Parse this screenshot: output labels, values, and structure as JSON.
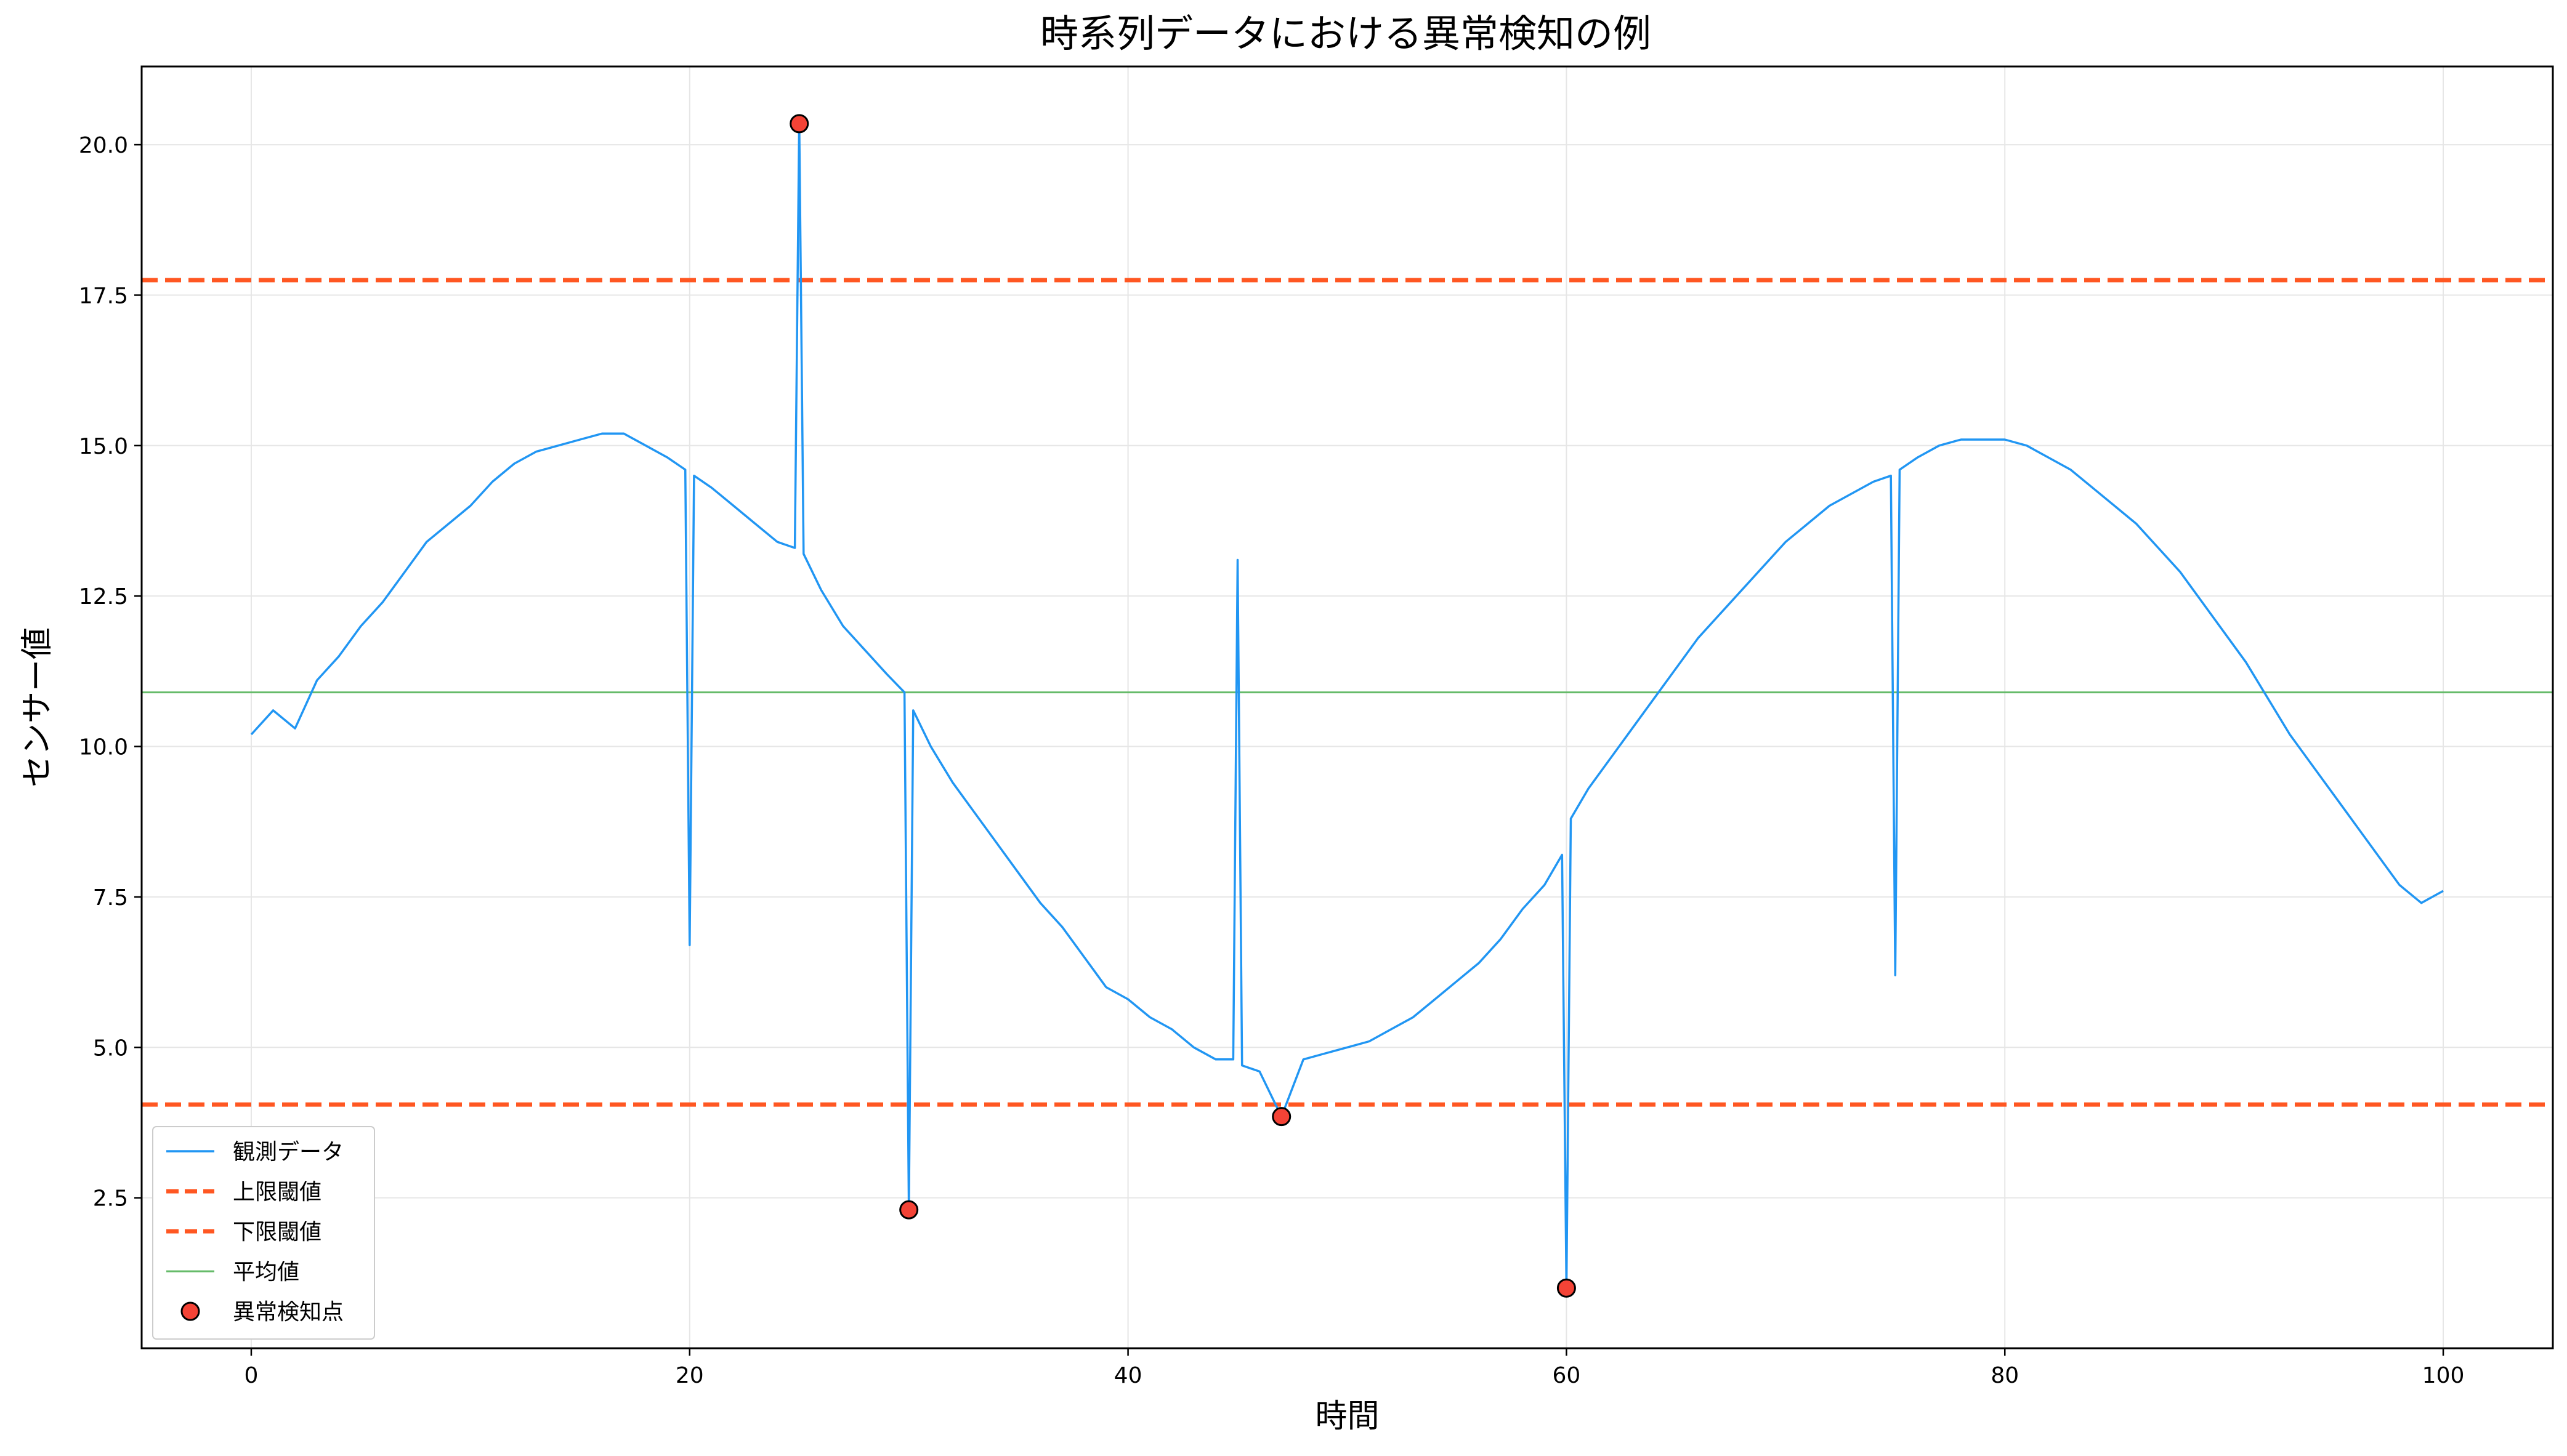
{
  "chart_data": {
    "type": "line",
    "title": "時系列データにおける異常検知の例",
    "xlabel": "時間",
    "ylabel": "センサー値",
    "xlim": [
      -5,
      105
    ],
    "ylim": [
      0,
      21.3
    ],
    "xticks": [
      0,
      20,
      40,
      60,
      80,
      100
    ],
    "xtick_labels": [
      "0",
      "20",
      "40",
      "60",
      "80",
      "100"
    ],
    "yticks": [
      2.5,
      5.0,
      7.5,
      10.0,
      12.5,
      15.0,
      17.5,
      20.0
    ],
    "ytick_labels": [
      "2.5",
      "5.0",
      "7.5",
      "10.0",
      "12.5",
      "15.0",
      "17.5",
      "20.0"
    ],
    "grid": true,
    "legend_position": "lower-left",
    "colors": {
      "observed": "#2196F3",
      "upper_threshold": "#FF5722",
      "lower_threshold": "#FF5722",
      "mean": "#66BB6A",
      "anomaly_fill": "#F44336",
      "anomaly_edge": "#000000"
    },
    "series": [
      {
        "name": "観測データ",
        "kind": "line",
        "x": [
          0,
          1,
          2,
          3,
          4,
          5,
          6,
          7,
          8,
          9,
          10,
          11,
          12,
          13,
          14,
          15,
          16,
          17,
          18,
          19,
          19.8,
          20,
          20.2,
          21,
          22,
          23,
          24,
          24.8,
          25,
          25.2,
          26,
          27,
          28,
          29,
          29.8,
          30,
          30.2,
          31,
          32,
          33,
          34,
          35,
          36,
          37,
          38,
          39,
          40,
          41,
          42,
          43,
          44,
          44.8,
          45,
          45.2,
          46,
          47,
          48,
          49,
          50,
          51,
          52,
          53,
          54,
          55,
          56,
          57,
          58,
          59,
          59.8,
          60,
          60.2,
          61,
          62,
          63,
          64,
          65,
          66,
          67,
          68,
          69,
          70,
          71,
          72,
          73,
          74,
          74.8,
          75,
          75.2,
          76,
          77,
          78,
          79,
          80,
          81,
          82,
          83,
          84,
          85,
          86,
          87,
          88,
          89,
          90,
          91,
          92,
          93,
          94,
          95,
          96,
          97,
          98,
          99,
          100
        ],
        "y": [
          10.2,
          10.6,
          10.3,
          11.1,
          11.5,
          12.0,
          12.4,
          12.9,
          13.4,
          13.7,
          14.0,
          14.4,
          14.7,
          14.9,
          15.0,
          15.1,
          15.2,
          15.2,
          15.0,
          14.8,
          14.6,
          6.7,
          14.5,
          14.3,
          14.0,
          13.7,
          13.4,
          13.3,
          20.4,
          13.2,
          12.6,
          12.0,
          11.6,
          11.2,
          10.9,
          2.3,
          10.6,
          10.0,
          9.4,
          8.9,
          8.4,
          7.9,
          7.4,
          7.0,
          6.5,
          6.0,
          5.8,
          5.5,
          5.3,
          5.0,
          4.8,
          4.8,
          13.1,
          4.7,
          4.6,
          3.85,
          4.8,
          4.9,
          5.0,
          5.1,
          5.3,
          5.5,
          5.8,
          6.1,
          6.4,
          6.8,
          7.3,
          7.7,
          8.2,
          1.0,
          8.8,
          9.3,
          9.8,
          10.3,
          10.8,
          11.3,
          11.8,
          12.2,
          12.6,
          13.0,
          13.4,
          13.7,
          14.0,
          14.2,
          14.4,
          14.5,
          6.2,
          14.6,
          14.8,
          15.0,
          15.1,
          15.1,
          15.1,
          15.0,
          14.8,
          14.6,
          14.3,
          14.0,
          13.7,
          13.3,
          12.9,
          12.4,
          11.9,
          11.4,
          10.8,
          10.2,
          9.7,
          9.2,
          8.7,
          8.2,
          7.7,
          7.4,
          7.6
        ]
      },
      {
        "name": "上限閾値",
        "kind": "hline",
        "y": 17.75
      },
      {
        "name": "下限閾値",
        "kind": "hline",
        "y": 4.05
      },
      {
        "name": "平均値",
        "kind": "hline",
        "y": 10.9
      },
      {
        "name": "異常検知点",
        "kind": "scatter",
        "x": [
          25,
          30,
          47,
          60
        ],
        "y": [
          20.35,
          2.3,
          3.85,
          1.0
        ]
      }
    ]
  }
}
